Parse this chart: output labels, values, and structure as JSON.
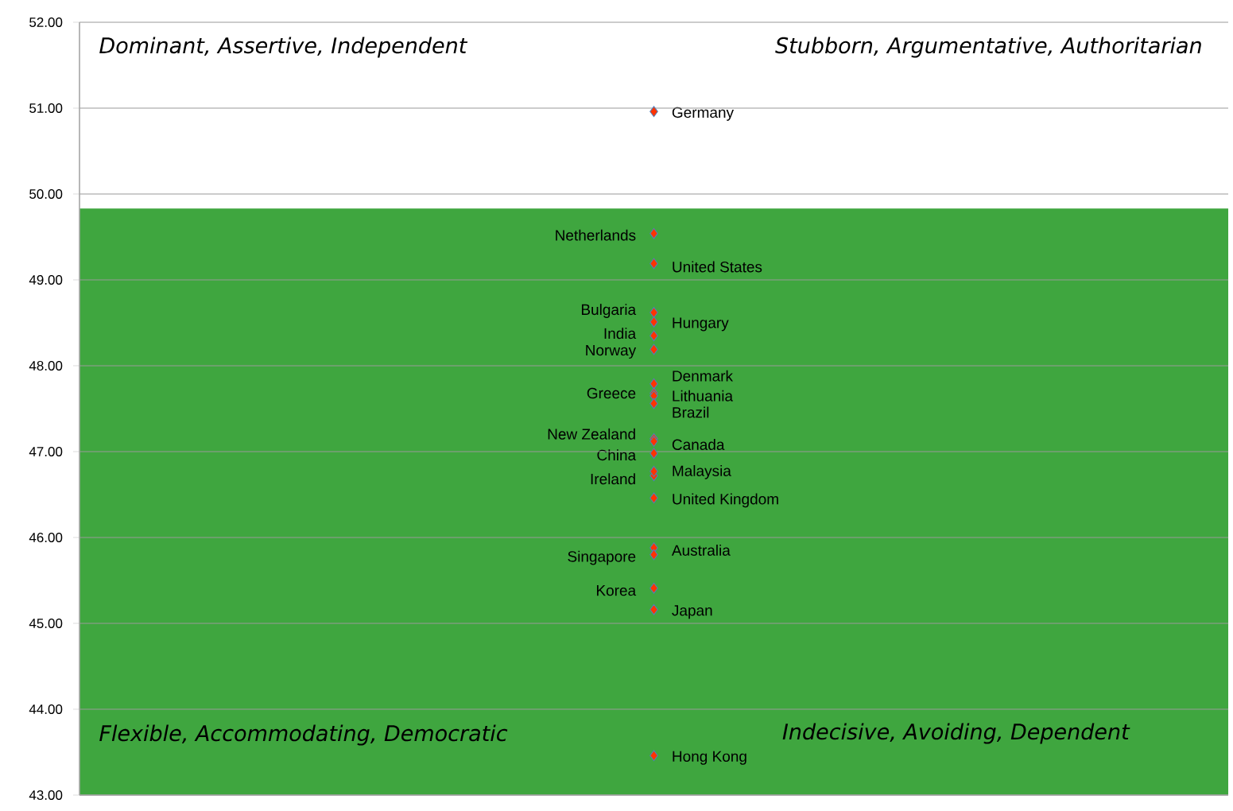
{
  "chart_data": {
    "type": "scatter",
    "categories": [
      null
    ],
    "ylim": [
      43,
      52
    ],
    "yticks": [
      {
        "value": 43,
        "label": "43.00"
      },
      {
        "value": 44,
        "label": "44.00"
      },
      {
        "value": 45,
        "label": "45.00"
      },
      {
        "value": 46,
        "label": "46.00"
      },
      {
        "value": 47,
        "label": "47.00"
      },
      {
        "value": 48,
        "label": "48.00"
      },
      {
        "value": 49,
        "label": "49.00"
      },
      {
        "value": 50,
        "label": "50.00"
      },
      {
        "value": 51,
        "label": "51.00"
      },
      {
        "value": 52,
        "label": "52.00"
      }
    ],
    "grid": "y",
    "marker": "diamond",
    "bands": [
      {
        "axis": "y",
        "from": 43,
        "to": 49.83,
        "color": "#3fa63f"
      }
    ],
    "annotations": [
      "Dominant, Assertive, Independent",
      "Stubborn, Argumentative, Authoritarian",
      "Flexible, Accommodating, Democratic",
      "Indecisive, Avoiding, Dependent"
    ],
    "series": [
      {
        "name": "Germany",
        "color": "#ff3300",
        "values": [
          50.96
        ]
      },
      {
        "name": "Netherlands",
        "color": "#ff3300",
        "values": [
          49.54
        ]
      },
      {
        "name": "United States",
        "color": "#ff3300",
        "values": [
          49.19
        ]
      },
      {
        "name": "Bulgaria",
        "color": "#ff3300",
        "values": [
          48.62
        ]
      },
      {
        "name": "Hungary",
        "color": "#ff3300",
        "values": [
          48.51
        ]
      },
      {
        "name": "India",
        "color": "#ff3300",
        "values": [
          48.35
        ]
      },
      {
        "name": "Norway",
        "color": "#ff3300",
        "values": [
          48.19
        ]
      },
      {
        "name": "Denmark",
        "color": "#ff3300",
        "values": [
          47.79
        ]
      },
      {
        "name": "Greece",
        "color": "#ff3300",
        "values": [
          47.68
        ]
      },
      {
        "name": "Lithuania",
        "color": "#ff3300",
        "values": [
          47.65
        ]
      },
      {
        "name": "Brazil",
        "color": "#ff3300",
        "values": [
          47.56
        ]
      },
      {
        "name": "New Zealand",
        "color": "#ff3300",
        "values": [
          47.15
        ]
      },
      {
        "name": "Canada",
        "color": "#ff3300",
        "values": [
          47.12
        ]
      },
      {
        "name": "China",
        "color": "#ff3300",
        "values": [
          46.98
        ]
      },
      {
        "name": "Ireland",
        "color": "#ff3300",
        "values": [
          46.72
        ]
      },
      {
        "name": "Malaysia",
        "color": "#ff3300",
        "values": [
          46.77
        ]
      },
      {
        "name": "United Kingdom",
        "color": "#ff3300",
        "values": [
          46.46
        ]
      },
      {
        "name": "Australia",
        "color": "#ff3300",
        "values": [
          45.88
        ]
      },
      {
        "name": "Singapore",
        "color": "#ff3300",
        "values": [
          45.8
        ]
      },
      {
        "name": "Korea",
        "color": "#ff3300",
        "values": [
          45.41
        ]
      },
      {
        "name": "Japan",
        "color": "#ff3300",
        "values": [
          45.16
        ]
      },
      {
        "name": "Hong Kong",
        "color": "#ff3300",
        "values": [
          43.46
        ]
      }
    ]
  }
}
